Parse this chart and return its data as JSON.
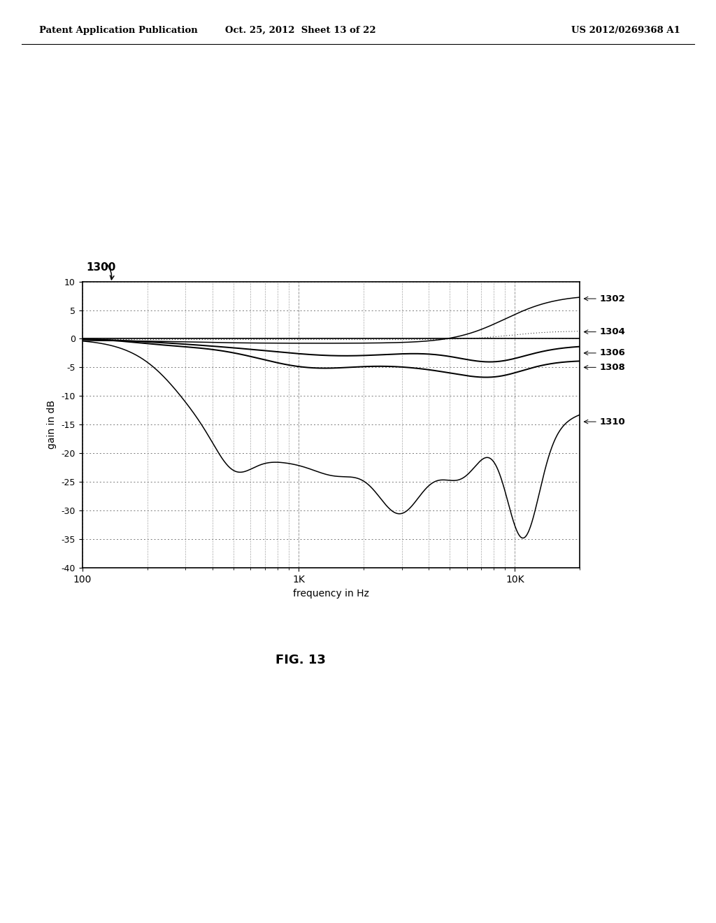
{
  "header_left": "Patent Application Publication",
  "header_center": "Oct. 25, 2012  Sheet 13 of 22",
  "header_right": "US 2012/0269368 A1",
  "figure_label": "FIG. 13",
  "ref_label": "1300",
  "curve_labels": [
    "1302",
    "1304",
    "1306",
    "1308",
    "1310"
  ],
  "xlabel": "frequency in Hz",
  "ylabel": "gain in dB",
  "ylim": [
    -40,
    10
  ],
  "yticks": [
    10,
    5,
    0,
    -5,
    -10,
    -15,
    -20,
    -25,
    -30,
    -35,
    -40
  ],
  "bg_color": "#ffffff",
  "plot_bg_color": "#ffffff"
}
